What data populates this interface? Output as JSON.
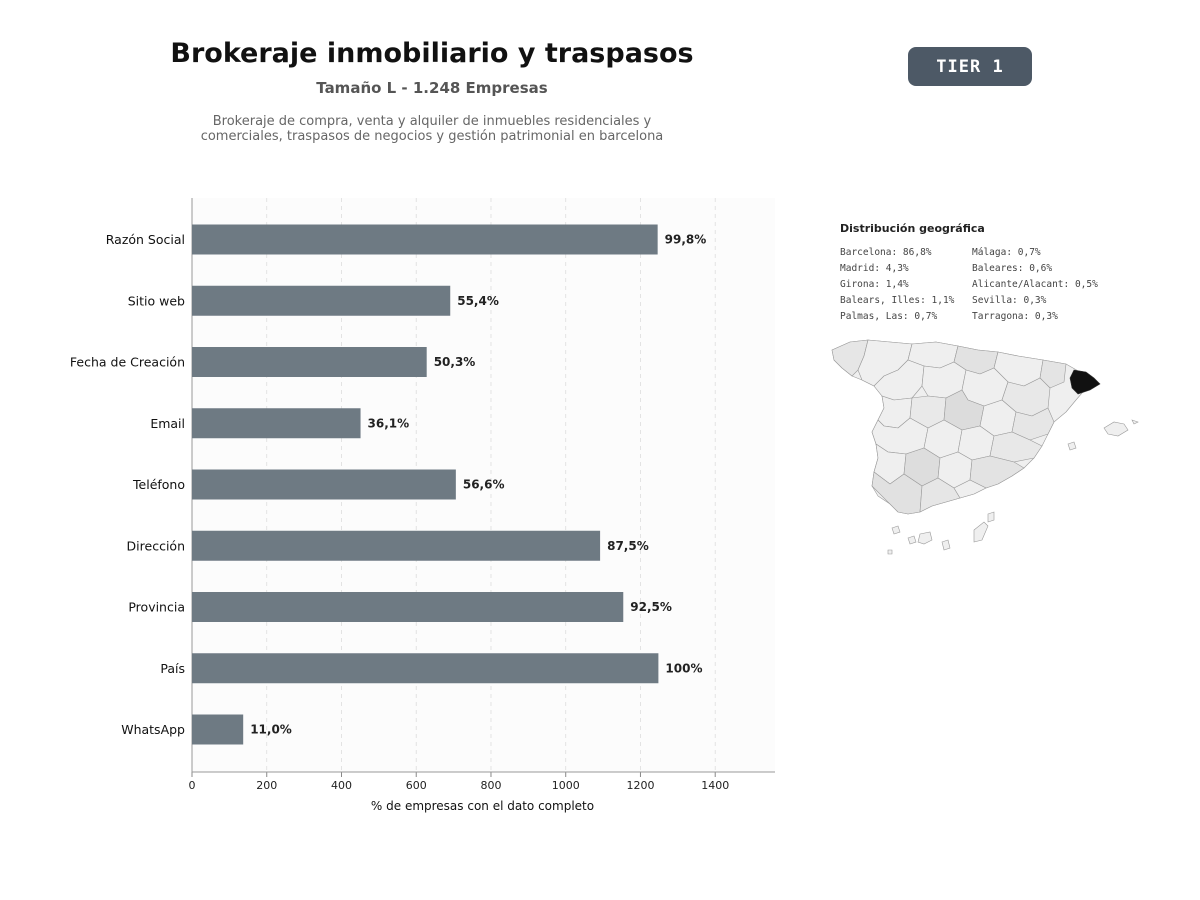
{
  "header": {
    "title": "Brokeraje inmobiliario y traspasos",
    "subtitle": "Tamaño L - 1.248 Empresas",
    "description_line1": "Brokeraje de compra, venta y alquiler de inmuebles residenciales y",
    "description_line2": "comerciales, traspasos de negocios y gestión patrimonial en barcelona"
  },
  "badge": {
    "label": "TIER 1",
    "color": "#4d5966"
  },
  "colors": {
    "bar": "#6e7a83",
    "highlight_region": "#111111",
    "region": "#efefef"
  },
  "chart_data": {
    "type": "bar",
    "orientation": "horizontal",
    "categories": [
      "Razón Social",
      "Sitio web",
      "Fecha de Creación",
      "Email",
      "Teléfono",
      "Dirección",
      "Provincia",
      "País",
      "WhatsApp"
    ],
    "values": [
      1246,
      691,
      628,
      451,
      706,
      1092,
      1154,
      1248,
      137
    ],
    "data_labels": [
      "99,8%",
      "55,4%",
      "50,3%",
      "36,1%",
      "56,6%",
      "87,5%",
      "92,5%",
      "100%",
      "11,0%"
    ],
    "xlabel": "% de empresas con el dato completo",
    "ylabel": "",
    "xlim": [
      0,
      1560
    ],
    "xticks": [
      0,
      200,
      400,
      600,
      800,
      1000,
      1200,
      1400
    ],
    "grid": "vertical-dashed"
  },
  "geo": {
    "title": "Distribución geográfica",
    "items": [
      "Barcelona: 86,8%",
      "Málaga: 0,7%",
      "Madrid: 4,3%",
      "Baleares: 0,6%",
      "Girona: 1,4%",
      "Alicante/Alacant: 0,5%",
      "Balears, Illes: 1,1%",
      "Sevilla: 0,3%",
      "Palmas, Las: 0,7%",
      "Tarragona: 0,3%"
    ],
    "highlight": "Barcelona"
  }
}
